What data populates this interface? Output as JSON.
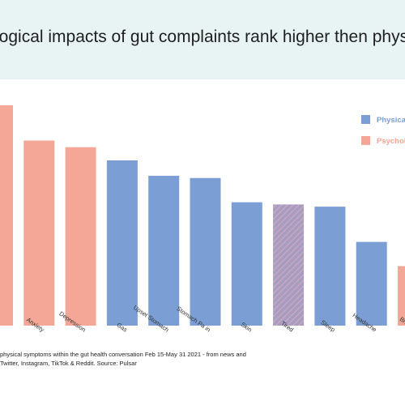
{
  "header": {
    "title": "logical impacts of gut complaints rank higher then physical sym"
  },
  "chart_data": {
    "type": "bar",
    "categories": [
      "",
      "Anxiety",
      "Depression",
      "Gas",
      "Upset Stomach",
      "Stomach Pa in",
      "Skin",
      "Tired",
      "Sleep",
      "Headache",
      "Brain fo"
    ],
    "values": [
      100,
      84,
      81,
      75,
      68,
      67,
      56,
      55,
      54,
      38,
      27
    ],
    "bar_groups": [
      "Psychological",
      "Psychological",
      "Psychological",
      "Physical",
      "Physical",
      "Physical",
      "Physical",
      "Mixed",
      "Physical",
      "Physical",
      "Psychological"
    ],
    "ylim": [
      0,
      100
    ],
    "grid": false,
    "legend_position": "top-right",
    "legend": [
      {
        "label": "Physical",
        "color": "#7b9fd4"
      },
      {
        "label": "Psycholo",
        "color": "#f4a797"
      }
    ],
    "colors": {
      "Physical": "#7b9fd4",
      "Psychological": "#f4a797",
      "Mixed_stripe": "#c7a4b8",
      "Mixed_base": "#a79cc2"
    }
  },
  "footnote": {
    "line1": "physical symptoms within the gut health conversation Feb 15-May 31 2021 - from news and",
    "line2": "Twitter, Instagram, TikTok & Reddit. Source: Pulsar"
  }
}
